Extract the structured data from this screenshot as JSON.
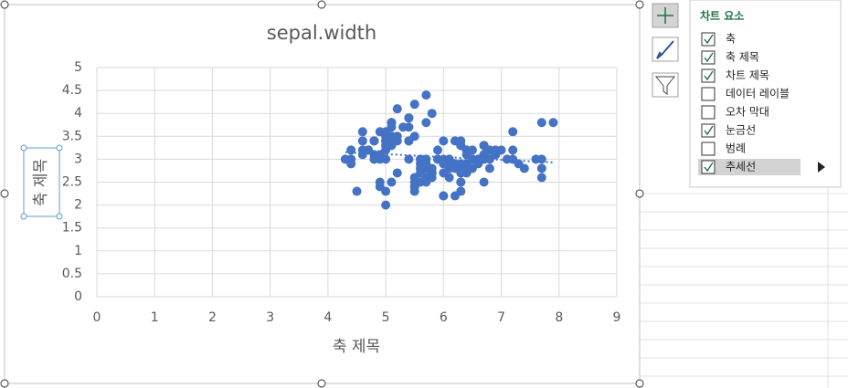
{
  "chart_data": {
    "type": "scatter",
    "title": "sepal.width",
    "x_label": "축 제목",
    "y_label": "축 제목",
    "x": [
      5.1,
      4.9,
      4.7,
      4.6,
      5.0,
      5.4,
      4.6,
      5.0,
      4.4,
      4.9,
      5.4,
      4.8,
      4.8,
      4.3,
      5.8,
      5.7,
      5.4,
      5.1,
      5.7,
      5.1,
      5.4,
      5.1,
      4.6,
      5.1,
      4.8,
      5.0,
      5.0,
      5.2,
      5.2,
      4.7,
      4.8,
      5.4,
      5.2,
      5.5,
      4.9,
      5.0,
      5.5,
      4.9,
      4.4,
      5.1,
      5.0,
      4.5,
      4.4,
      5.0,
      5.1,
      4.8,
      5.1,
      4.6,
      5.3,
      5.0,
      7.0,
      6.4,
      6.9,
      5.5,
      6.5,
      5.7,
      6.3,
      4.9,
      6.6,
      5.2,
      5.0,
      5.9,
      6.0,
      6.1,
      5.6,
      6.7,
      5.6,
      5.8,
      6.2,
      5.6,
      5.9,
      6.1,
      6.3,
      6.1,
      6.4,
      6.6,
      6.8,
      6.7,
      6.0,
      5.7,
      5.5,
      5.5,
      5.8,
      6.0,
      5.4,
      6.0,
      6.7,
      6.3,
      5.6,
      5.5,
      5.5,
      6.1,
      5.8,
      5.0,
      5.6,
      5.7,
      5.7,
      6.2,
      5.1,
      5.7,
      6.3,
      5.8,
      7.1,
      6.3,
      6.5,
      7.6,
      4.9,
      7.3,
      6.7,
      7.2,
      6.5,
      6.4,
      6.8,
      5.7,
      5.8,
      6.4,
      6.5,
      7.7,
      7.7,
      6.0,
      6.9,
      5.6,
      7.7,
      6.3,
      6.7,
      7.2,
      6.2,
      6.1,
      6.4,
      7.2,
      7.4,
      7.9,
      6.4,
      6.3,
      6.1,
      7.7,
      6.3,
      6.4,
      6.0,
      6.9,
      6.7,
      6.9,
      5.8,
      6.8,
      6.7,
      6.7,
      6.3,
      6.5,
      6.2,
      5.9
    ],
    "series": [
      {
        "color": "#4472c4",
        "values": [
          3.5,
          3.0,
          3.2,
          3.1,
          3.6,
          3.9,
          3.4,
          3.4,
          2.9,
          3.1,
          3.7,
          3.4,
          3.0,
          3.0,
          4.0,
          4.4,
          3.9,
          3.5,
          3.8,
          3.8,
          3.4,
          3.7,
          3.6,
          3.3,
          3.4,
          3.0,
          3.4,
          3.5,
          3.4,
          3.2,
          3.1,
          3.4,
          4.1,
          4.2,
          3.1,
          3.2,
          3.5,
          3.6,
          3.0,
          3.4,
          3.5,
          2.3,
          3.2,
          3.5,
          3.8,
          3.0,
          3.8,
          3.2,
          3.7,
          3.3,
          3.2,
          3.2,
          3.1,
          2.3,
          2.8,
          2.8,
          3.3,
          2.4,
          2.9,
          2.7,
          2.0,
          3.0,
          2.2,
          2.9,
          2.9,
          3.1,
          3.0,
          2.7,
          2.2,
          2.5,
          3.2,
          2.8,
          2.5,
          2.8,
          2.9,
          3.0,
          2.8,
          3.0,
          2.9,
          2.6,
          2.4,
          2.4,
          2.7,
          2.7,
          3.0,
          3.4,
          3.1,
          2.3,
          3.0,
          2.5,
          2.6,
          3.0,
          2.6,
          2.3,
          2.7,
          3.0,
          2.9,
          2.9,
          2.5,
          2.8,
          3.3,
          2.7,
          3.0,
          2.9,
          3.0,
          3.0,
          2.5,
          2.9,
          2.5,
          3.6,
          3.2,
          2.7,
          3.0,
          2.5,
          2.8,
          3.2,
          3.0,
          3.8,
          2.6,
          2.2,
          3.2,
          2.8,
          2.8,
          2.7,
          3.3,
          3.2,
          2.8,
          3.0,
          2.8,
          3.0,
          2.8,
          3.8,
          2.8,
          2.8,
          2.6,
          3.0,
          3.4,
          3.1,
          3.0,
          3.1,
          3.1,
          3.1,
          2.7,
          3.2,
          3.3,
          3.0,
          2.5,
          3.0,
          3.4,
          3.0
        ]
      }
    ],
    "xlim": [
      0,
      9
    ],
    "ylim": [
      0,
      5
    ],
    "xticks": [
      0,
      1,
      2,
      3,
      4,
      5,
      6,
      7,
      8,
      9
    ],
    "yticks": [
      0,
      0.5,
      1,
      1.5,
      2,
      2.5,
      3,
      3.5,
      4,
      4.5,
      5
    ],
    "grid": true,
    "trendline": true
  },
  "chart_elements_panel": {
    "title": "차트 요소",
    "items": [
      {
        "label": "축",
        "checked": true
      },
      {
        "label": "축 제목",
        "checked": true
      },
      {
        "label": "차트 제목",
        "checked": true
      },
      {
        "label": "데이터 레이블",
        "checked": false
      },
      {
        "label": "오차 막대",
        "checked": false
      },
      {
        "label": "눈금선",
        "checked": true
      },
      {
        "label": "범례",
        "checked": false
      },
      {
        "label": "추세선",
        "checked": true
      }
    ]
  }
}
